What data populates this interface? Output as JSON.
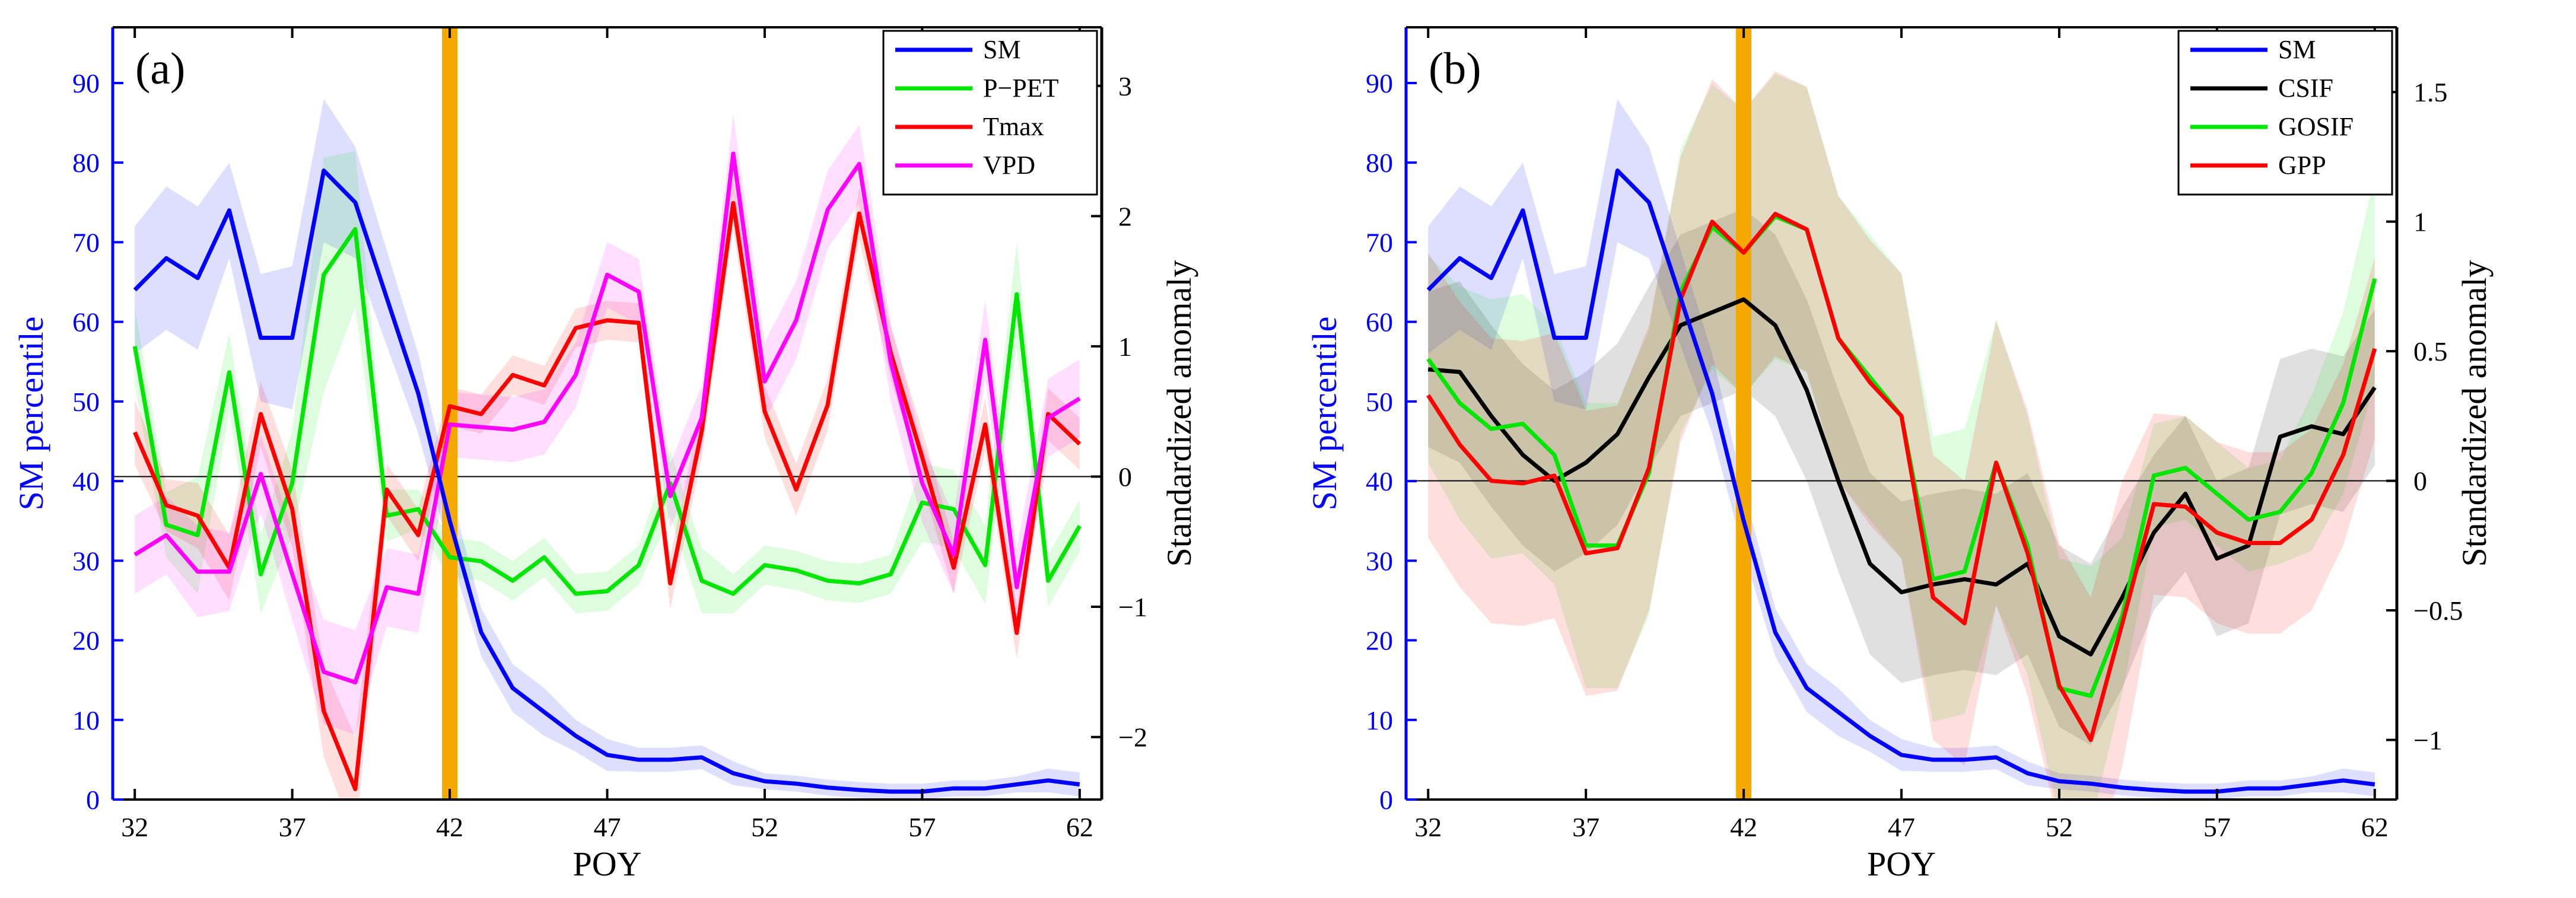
{
  "colors": {
    "sm": "#0000ff",
    "ppet": "#00e600",
    "tmax": "#ff0000",
    "vpd": "#ff00ff",
    "csif": "#000000",
    "gosif": "#00e600",
    "gpp": "#ff0000",
    "event": "#f5a800",
    "axis_right": "#000000"
  },
  "chart_data": [
    {
      "type": "line",
      "panel_label": "(a)",
      "xlabel": "POY",
      "ylabel_left": "SM percentile",
      "ylabel_right": "Standardized anomaly",
      "xlim": [
        31.3,
        62.7
      ],
      "ylim_left": [
        0,
        97
      ],
      "ylim_right": [
        -2.48,
        3.45
      ],
      "xticks": [
        32,
        37,
        42,
        47,
        52,
        57,
        62
      ],
      "yticks_left": [
        0,
        10,
        20,
        30,
        40,
        50,
        60,
        70,
        80,
        90
      ],
      "yticks_right": [
        -2,
        -1,
        0,
        1,
        2,
        3
      ],
      "event_x": 42,
      "zero_line": 0,
      "legend_position": "top-right",
      "x": [
        32,
        33,
        34,
        35,
        36,
        37,
        38,
        39,
        40,
        41,
        42,
        43,
        44,
        45,
        46,
        47,
        48,
        49,
        50,
        51,
        52,
        53,
        54,
        55,
        56,
        57,
        58,
        59,
        60,
        61,
        62
      ],
      "series": [
        {
          "name": "SM",
          "axis": "left",
          "color_key": "sm",
          "values": [
            64,
            68,
            65.5,
            74,
            58,
            58,
            79,
            75,
            63,
            51,
            35,
            21,
            14,
            11,
            8,
            5.6,
            5,
            5,
            5.3,
            3.3,
            2.3,
            2,
            1.5,
            1.2,
            1,
            1,
            1.4,
            1.4,
            1.9,
            2.4,
            1.9
          ],
          "band": [
            8,
            9,
            9,
            6,
            8,
            9,
            9,
            7,
            6,
            5,
            4,
            3,
            3,
            3,
            2,
            2,
            1.5,
            1.5,
            1.5,
            1.5,
            1,
            1,
            1,
            1,
            1,
            1,
            1,
            1,
            1,
            1.5,
            1.5
          ]
        },
        {
          "name": "P−PET",
          "axis": "right",
          "color_key": "ppet",
          "values": [
            1.0,
            -0.37,
            -0.45,
            0.8,
            -0.75,
            -0.05,
            1.55,
            1.9,
            -0.3,
            -0.25,
            -0.62,
            -0.65,
            -0.8,
            -0.62,
            -0.9,
            -0.88,
            -0.68,
            -0.05,
            -0.8,
            -0.9,
            -0.68,
            -0.72,
            -0.8,
            -0.82,
            -0.75,
            -0.2,
            -0.25,
            -0.68,
            1.4,
            -0.8,
            -0.38
          ],
          "band": [
            0.3,
            0.25,
            0.45,
            0.3,
            0.3,
            0.4,
            0.9,
            0.6,
            0.2,
            0.15,
            0.15,
            0.15,
            0.15,
            0.15,
            0.15,
            0.15,
            0.15,
            0.25,
            0.25,
            0.15,
            0.15,
            0.15,
            0.15,
            0.15,
            0.15,
            0.3,
            0.3,
            0.3,
            0.4,
            0.2,
            0.2
          ]
        },
        {
          "name": "Tmax",
          "axis": "right",
          "color_key": "tmax",
          "values": [
            0.34,
            -0.22,
            -0.3,
            -0.7,
            0.48,
            -0.25,
            -1.8,
            -2.4,
            -0.1,
            -0.45,
            0.54,
            0.48,
            0.78,
            0.7,
            1.14,
            1.2,
            1.18,
            -0.82,
            0.35,
            2.1,
            0.5,
            -0.1,
            0.55,
            2.02,
            0.95,
            0.15,
            -0.7,
            0.4,
            -1.2,
            0.48,
            0.25
          ],
          "band": [
            0.25,
            0.2,
            0.25,
            0.25,
            0.25,
            0.3,
            0.35,
            0.4,
            0.2,
            0.2,
            0.15,
            0.15,
            0.15,
            0.15,
            0.15,
            0.15,
            0.15,
            0.2,
            0.2,
            0.2,
            0.2,
            0.2,
            0.2,
            0.2,
            0.2,
            0.2,
            0.2,
            0.2,
            0.2,
            0.2,
            0.2
          ]
        },
        {
          "name": "VPD",
          "axis": "right",
          "color_key": "vpd",
          "values": [
            -0.6,
            -0.45,
            -0.73,
            -0.73,
            0.02,
            -0.75,
            -1.5,
            -1.58,
            -0.85,
            -0.9,
            0.4,
            0.38,
            0.36,
            0.42,
            0.78,
            1.55,
            1.42,
            -0.15,
            0.45,
            2.48,
            0.73,
            1.2,
            2.05,
            2.4,
            0.88,
            -0.05,
            -0.6,
            1.05,
            -0.85,
            0.45,
            0.6
          ],
          "band": [
            0.3,
            0.3,
            0.35,
            0.3,
            0.3,
            0.35,
            0.4,
            0.4,
            0.3,
            0.3,
            0.25,
            0.25,
            0.25,
            0.25,
            0.25,
            0.25,
            0.25,
            0.25,
            0.25,
            0.3,
            0.3,
            0.3,
            0.3,
            0.3,
            0.3,
            0.3,
            0.3,
            0.3,
            0.3,
            0.3,
            0.3
          ]
        }
      ]
    },
    {
      "type": "line",
      "panel_label": "(b)",
      "xlabel": "POY",
      "ylabel_left": "SM percentile",
      "ylabel_right": "Standardized anomaly",
      "xlim": [
        31.3,
        62.7
      ],
      "ylim_left": [
        0,
        97
      ],
      "ylim_right": [
        -1.23,
        1.75
      ],
      "xticks": [
        32,
        37,
        42,
        47,
        52,
        57,
        62
      ],
      "yticks_left": [
        0,
        10,
        20,
        30,
        40,
        50,
        60,
        70,
        80,
        90
      ],
      "yticks_right": [
        -1,
        -0.5,
        0,
        0.5,
        1,
        1.5
      ],
      "yticklabels_right": [
        "−1",
        "−0.5",
        "0",
        "0.5",
        "1",
        "1.5"
      ],
      "event_x": 42,
      "zero_line": 0,
      "legend_position": "top-right",
      "x": [
        32,
        33,
        34,
        35,
        36,
        37,
        38,
        39,
        40,
        41,
        42,
        43,
        44,
        45,
        46,
        47,
        48,
        49,
        50,
        51,
        52,
        53,
        54,
        55,
        56,
        57,
        58,
        59,
        60,
        61,
        62
      ],
      "series": [
        {
          "name": "SM",
          "axis": "left",
          "color_key": "sm",
          "values": [
            64,
            68,
            65.5,
            74,
            58,
            58,
            79,
            75,
            63,
            51,
            35,
            21,
            14,
            11,
            8,
            5.6,
            5,
            5,
            5.3,
            3.3,
            2.3,
            2,
            1.5,
            1.2,
            1,
            1,
            1.4,
            1.4,
            1.9,
            2.4,
            1.9
          ],
          "band": [
            8,
            9,
            9,
            6,
            8,
            9,
            9,
            7,
            6,
            5,
            4,
            3,
            3,
            3,
            2,
            2,
            1.5,
            1.5,
            1.5,
            1.5,
            1,
            1,
            1,
            1,
            1,
            1,
            1,
            1,
            1,
            1.5,
            1.5
          ]
        },
        {
          "name": "CSIF",
          "axis": "right",
          "color_key": "csif",
          "values": [
            0.43,
            0.42,
            0.25,
            0.1,
            0.0,
            0.07,
            0.18,
            0.4,
            0.6,
            0.65,
            0.7,
            0.6,
            0.35,
            0.0,
            -0.32,
            -0.43,
            -0.4,
            -0.38,
            -0.4,
            -0.32,
            -0.6,
            -0.67,
            -0.45,
            -0.2,
            -0.05,
            -0.3,
            -0.25,
            0.17,
            0.21,
            0.18,
            0.36
          ],
          "band": [
            0.3,
            0.35,
            0.35,
            0.35,
            0.35,
            0.35,
            0.35,
            0.35,
            0.35,
            0.35,
            0.35,
            0.35,
            0.35,
            0.35,
            0.35,
            0.35,
            0.35,
            0.35,
            0.35,
            0.35,
            0.35,
            0.35,
            0.35,
            0.3,
            0.3,
            0.3,
            0.3,
            0.3,
            0.3,
            0.3,
            0.3
          ]
        },
        {
          "name": "GOSIF",
          "axis": "right",
          "color_key": "gosif",
          "values": [
            0.47,
            0.3,
            0.2,
            0.22,
            0.1,
            -0.25,
            -0.25,
            0.03,
            0.73,
            0.98,
            0.88,
            1.02,
            0.97,
            0.55,
            0.4,
            0.25,
            -0.38,
            -0.35,
            0.07,
            -0.25,
            -0.8,
            -0.83,
            -0.52,
            0.02,
            0.05,
            -0.05,
            -0.15,
            -0.12,
            0.03,
            0.3,
            0.78
          ],
          "band": [
            0.4,
            0.45,
            0.5,
            0.5,
            0.5,
            0.55,
            0.55,
            0.55,
            0.55,
            0.55,
            0.55,
            0.55,
            0.55,
            0.55,
            0.55,
            0.55,
            0.55,
            0.55,
            0.55,
            0.5,
            0.5,
            0.5,
            0.3,
            0.2,
            0.2,
            0.2,
            0.2,
            0.2,
            0.3,
            0.35,
            0.4
          ]
        },
        {
          "name": "GPP",
          "axis": "right",
          "color_key": "gpp",
          "values": [
            0.33,
            0.14,
            0.0,
            -0.01,
            0.02,
            -0.28,
            -0.26,
            0.05,
            0.7,
            1.0,
            0.88,
            1.03,
            0.97,
            0.55,
            0.38,
            0.25,
            -0.45,
            -0.55,
            0.07,
            -0.28,
            -0.79,
            -1.0,
            -0.55,
            -0.09,
            -0.1,
            -0.2,
            -0.24,
            -0.24,
            -0.15,
            0.1,
            0.51
          ],
          "band": [
            0.55,
            0.55,
            0.55,
            0.55,
            0.55,
            0.55,
            0.55,
            0.55,
            0.55,
            0.55,
            0.55,
            0.55,
            0.55,
            0.55,
            0.55,
            0.55,
            0.55,
            0.55,
            0.55,
            0.55,
            0.55,
            0.55,
            0.55,
            0.35,
            0.35,
            0.35,
            0.35,
            0.35,
            0.35,
            0.35,
            0.35
          ]
        }
      ]
    }
  ]
}
